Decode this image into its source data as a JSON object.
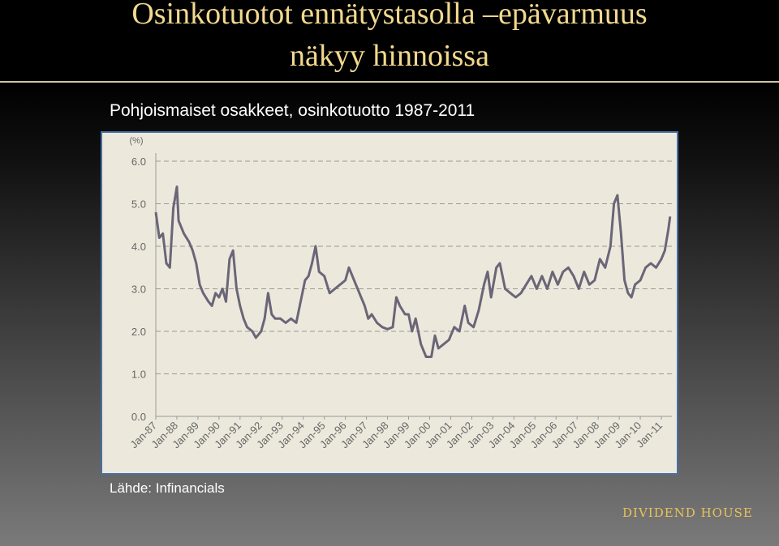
{
  "header": {
    "title_lines": [
      "Osinkotuotot ennätystasolla –epävarmuus",
      "näkyy hinnoissa"
    ]
  },
  "subtitle": "Pohjoismaiset osakkeet, osinkotuotto 1987-2011",
  "source": "Lähde: Infinancials",
  "logo": "DIVIDEND HOUSE",
  "chart_data": {
    "type": "line",
    "ylabel": "(%)",
    "color": "#6b6578",
    "grid": true,
    "ylim": [
      0,
      6
    ],
    "yticks": [
      {
        "value": 0,
        "label": "0.0"
      },
      {
        "value": 1,
        "label": "1.0"
      },
      {
        "value": 2,
        "label": "2.0"
      },
      {
        "value": 3,
        "label": "3.0"
      },
      {
        "value": 4,
        "label": "4.0"
      },
      {
        "value": 5,
        "label": "5.0"
      },
      {
        "value": 6,
        "label": "6.0"
      }
    ],
    "xlim": [
      "1987-01",
      "2011-07"
    ],
    "xticks": [
      {
        "value": "1987-01",
        "label": "Jan-87"
      },
      {
        "value": "1988-01",
        "label": "Jan-88"
      },
      {
        "value": "1989-01",
        "label": "Jan-89"
      },
      {
        "value": "1990-01",
        "label": "Jan-90"
      },
      {
        "value": "1991-01",
        "label": "Jan-91"
      },
      {
        "value": "1992-01",
        "label": "Jan-92"
      },
      {
        "value": "1993-01",
        "label": "Jan-93"
      },
      {
        "value": "1994-01",
        "label": "Jan-94"
      },
      {
        "value": "1995-01",
        "label": "Jan-95"
      },
      {
        "value": "1996-01",
        "label": "Jan-96"
      },
      {
        "value": "1997-01",
        "label": "Jan-97"
      },
      {
        "value": "1998-01",
        "label": "Jan-98"
      },
      {
        "value": "1999-01",
        "label": "Jan-99"
      },
      {
        "value": "2000-01",
        "label": "Jan-00"
      },
      {
        "value": "2001-01",
        "label": "Jan-01"
      },
      {
        "value": "2002-01",
        "label": "Jan-02"
      },
      {
        "value": "2003-01",
        "label": "Jan-03"
      },
      {
        "value": "2004-01",
        "label": "Jan-04"
      },
      {
        "value": "2005-01",
        "label": "Jan-05"
      },
      {
        "value": "2006-01",
        "label": "Jan-06"
      },
      {
        "value": "2007-01",
        "label": "Jan-07"
      },
      {
        "value": "2008-01",
        "label": "Jan-08"
      },
      {
        "value": "2009-01",
        "label": "Jan-09"
      },
      {
        "value": "2010-01",
        "label": "Jan-10"
      },
      {
        "value": "2011-01",
        "label": "Jan-11"
      }
    ],
    "x": [
      "1987-01",
      "1987-03",
      "1987-05",
      "1987-07",
      "1987-09",
      "1987-11",
      "1988-01",
      "1988-02",
      "1988-05",
      "1988-08",
      "1988-10",
      "1988-12",
      "1989-02",
      "1989-04",
      "1989-07",
      "1989-09",
      "1989-11",
      "1990-01",
      "1990-03",
      "1990-05",
      "1990-07",
      "1990-09",
      "1990-11",
      "1991-01",
      "1991-03",
      "1991-05",
      "1991-08",
      "1991-10",
      "1992-01",
      "1992-03",
      "1992-05",
      "1992-07",
      "1992-09",
      "1992-12",
      "1993-03",
      "1993-06",
      "1993-09",
      "1993-11",
      "1994-02",
      "1994-04",
      "1994-06",
      "1994-08",
      "1994-10",
      "1995-01",
      "1995-04",
      "1995-07",
      "1995-10",
      "1996-01",
      "1996-03",
      "1996-06",
      "1996-09",
      "1996-12",
      "1997-02",
      "1997-04",
      "1997-07",
      "1997-10",
      "1998-01",
      "1998-04",
      "1998-06",
      "1998-08",
      "1998-11",
      "1999-01",
      "1999-03",
      "1999-05",
      "1999-08",
      "1999-11",
      "2000-02",
      "2000-04",
      "2000-06",
      "2000-09",
      "2000-12",
      "2001-03",
      "2001-06",
      "2001-09",
      "2001-11",
      "2002-02",
      "2002-05",
      "2002-08",
      "2002-10",
      "2002-12",
      "2003-03",
      "2003-05",
      "2003-08",
      "2003-11",
      "2004-02",
      "2004-05",
      "2004-08",
      "2004-11",
      "2005-02",
      "2005-05",
      "2005-08",
      "2005-11",
      "2006-02",
      "2006-05",
      "2006-08",
      "2006-11",
      "2007-02",
      "2007-05",
      "2007-08",
      "2007-11",
      "2008-02",
      "2008-05",
      "2008-08",
      "2008-10",
      "2008-12",
      "2009-02",
      "2009-04",
      "2009-06",
      "2009-08",
      "2009-10",
      "2010-01",
      "2010-04",
      "2010-07",
      "2010-10",
      "2011-01",
      "2011-03",
      "2011-05",
      "2011-06"
    ],
    "values": [
      4.8,
      4.2,
      4.3,
      3.6,
      3.5,
      4.9,
      5.4,
      4.6,
      4.3,
      4.1,
      3.9,
      3.6,
      3.1,
      2.9,
      2.7,
      2.6,
      2.9,
      2.8,
      3.0,
      2.7,
      3.7,
      3.9,
      3.0,
      2.6,
      2.3,
      2.1,
      2.0,
      1.85,
      2.0,
      2.3,
      2.9,
      2.4,
      2.3,
      2.3,
      2.2,
      2.3,
      2.2,
      2.6,
      3.2,
      3.3,
      3.6,
      4.0,
      3.4,
      3.3,
      2.9,
      3.0,
      3.1,
      3.2,
      3.5,
      3.2,
      2.9,
      2.6,
      2.3,
      2.4,
      2.2,
      2.1,
      2.05,
      2.1,
      2.8,
      2.6,
      2.4,
      2.4,
      2.0,
      2.3,
      1.7,
      1.4,
      1.4,
      1.9,
      1.6,
      1.7,
      1.8,
      2.1,
      2.0,
      2.6,
      2.2,
      2.1,
      2.5,
      3.1,
      3.4,
      2.8,
      3.5,
      3.6,
      3.0,
      2.9,
      2.8,
      2.9,
      3.1,
      3.3,
      3.0,
      3.3,
      3.0,
      3.4,
      3.1,
      3.4,
      3.5,
      3.3,
      3.0,
      3.4,
      3.1,
      3.2,
      3.7,
      3.5,
      4.0,
      5.0,
      5.2,
      4.3,
      3.2,
      2.9,
      2.8,
      3.1,
      3.2,
      3.5,
      3.6,
      3.5,
      3.7,
      3.9,
      4.4,
      4.7
    ]
  }
}
